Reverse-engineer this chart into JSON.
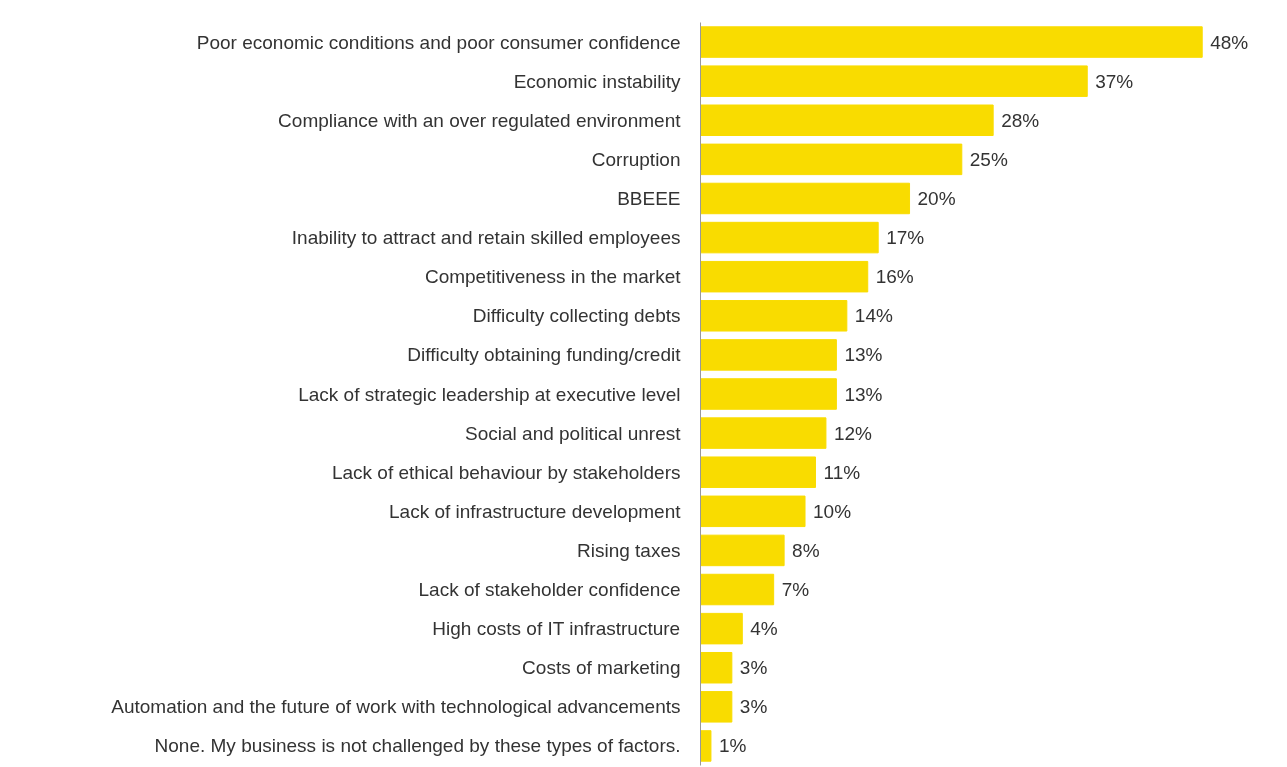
{
  "chart_data": {
    "type": "bar",
    "orientation": "horizontal",
    "categories": [
      "Poor economic conditions and poor consumer confidence",
      "Economic instability",
      "Compliance with an over regulated environment",
      "Corruption",
      "BBEEE",
      "Inability to attract and retain skilled employees",
      "Competitiveness in the market",
      "Difficulty collecting debts",
      "Difficulty obtaining funding/credit",
      "Lack of strategic leadership at executive level",
      "Social and political unrest",
      "Lack of ethical behaviour by stakeholders",
      "Lack of infrastructure development",
      "Rising taxes",
      "Lack of stakeholder confidence",
      "High costs of IT infrastructure",
      "Costs of marketing",
      "Automation and the future of work with technological advancements",
      "None. My business is not challenged by these types of factors."
    ],
    "values": [
      48,
      37,
      28,
      25,
      20,
      17,
      16,
      14,
      13,
      13,
      12,
      11,
      10,
      8,
      7,
      4,
      3,
      3,
      1
    ],
    "value_labels": [
      "48%",
      "37%",
      "28%",
      "25%",
      "20%",
      "17%",
      "16%",
      "14%",
      "13%",
      "13%",
      "12%",
      "11%",
      "10%",
      "8%",
      "7%",
      "4%",
      "3%",
      "3%",
      "1%"
    ],
    "color": "#f9dc00",
    "tick_labels": "y",
    "grid": false
  }
}
